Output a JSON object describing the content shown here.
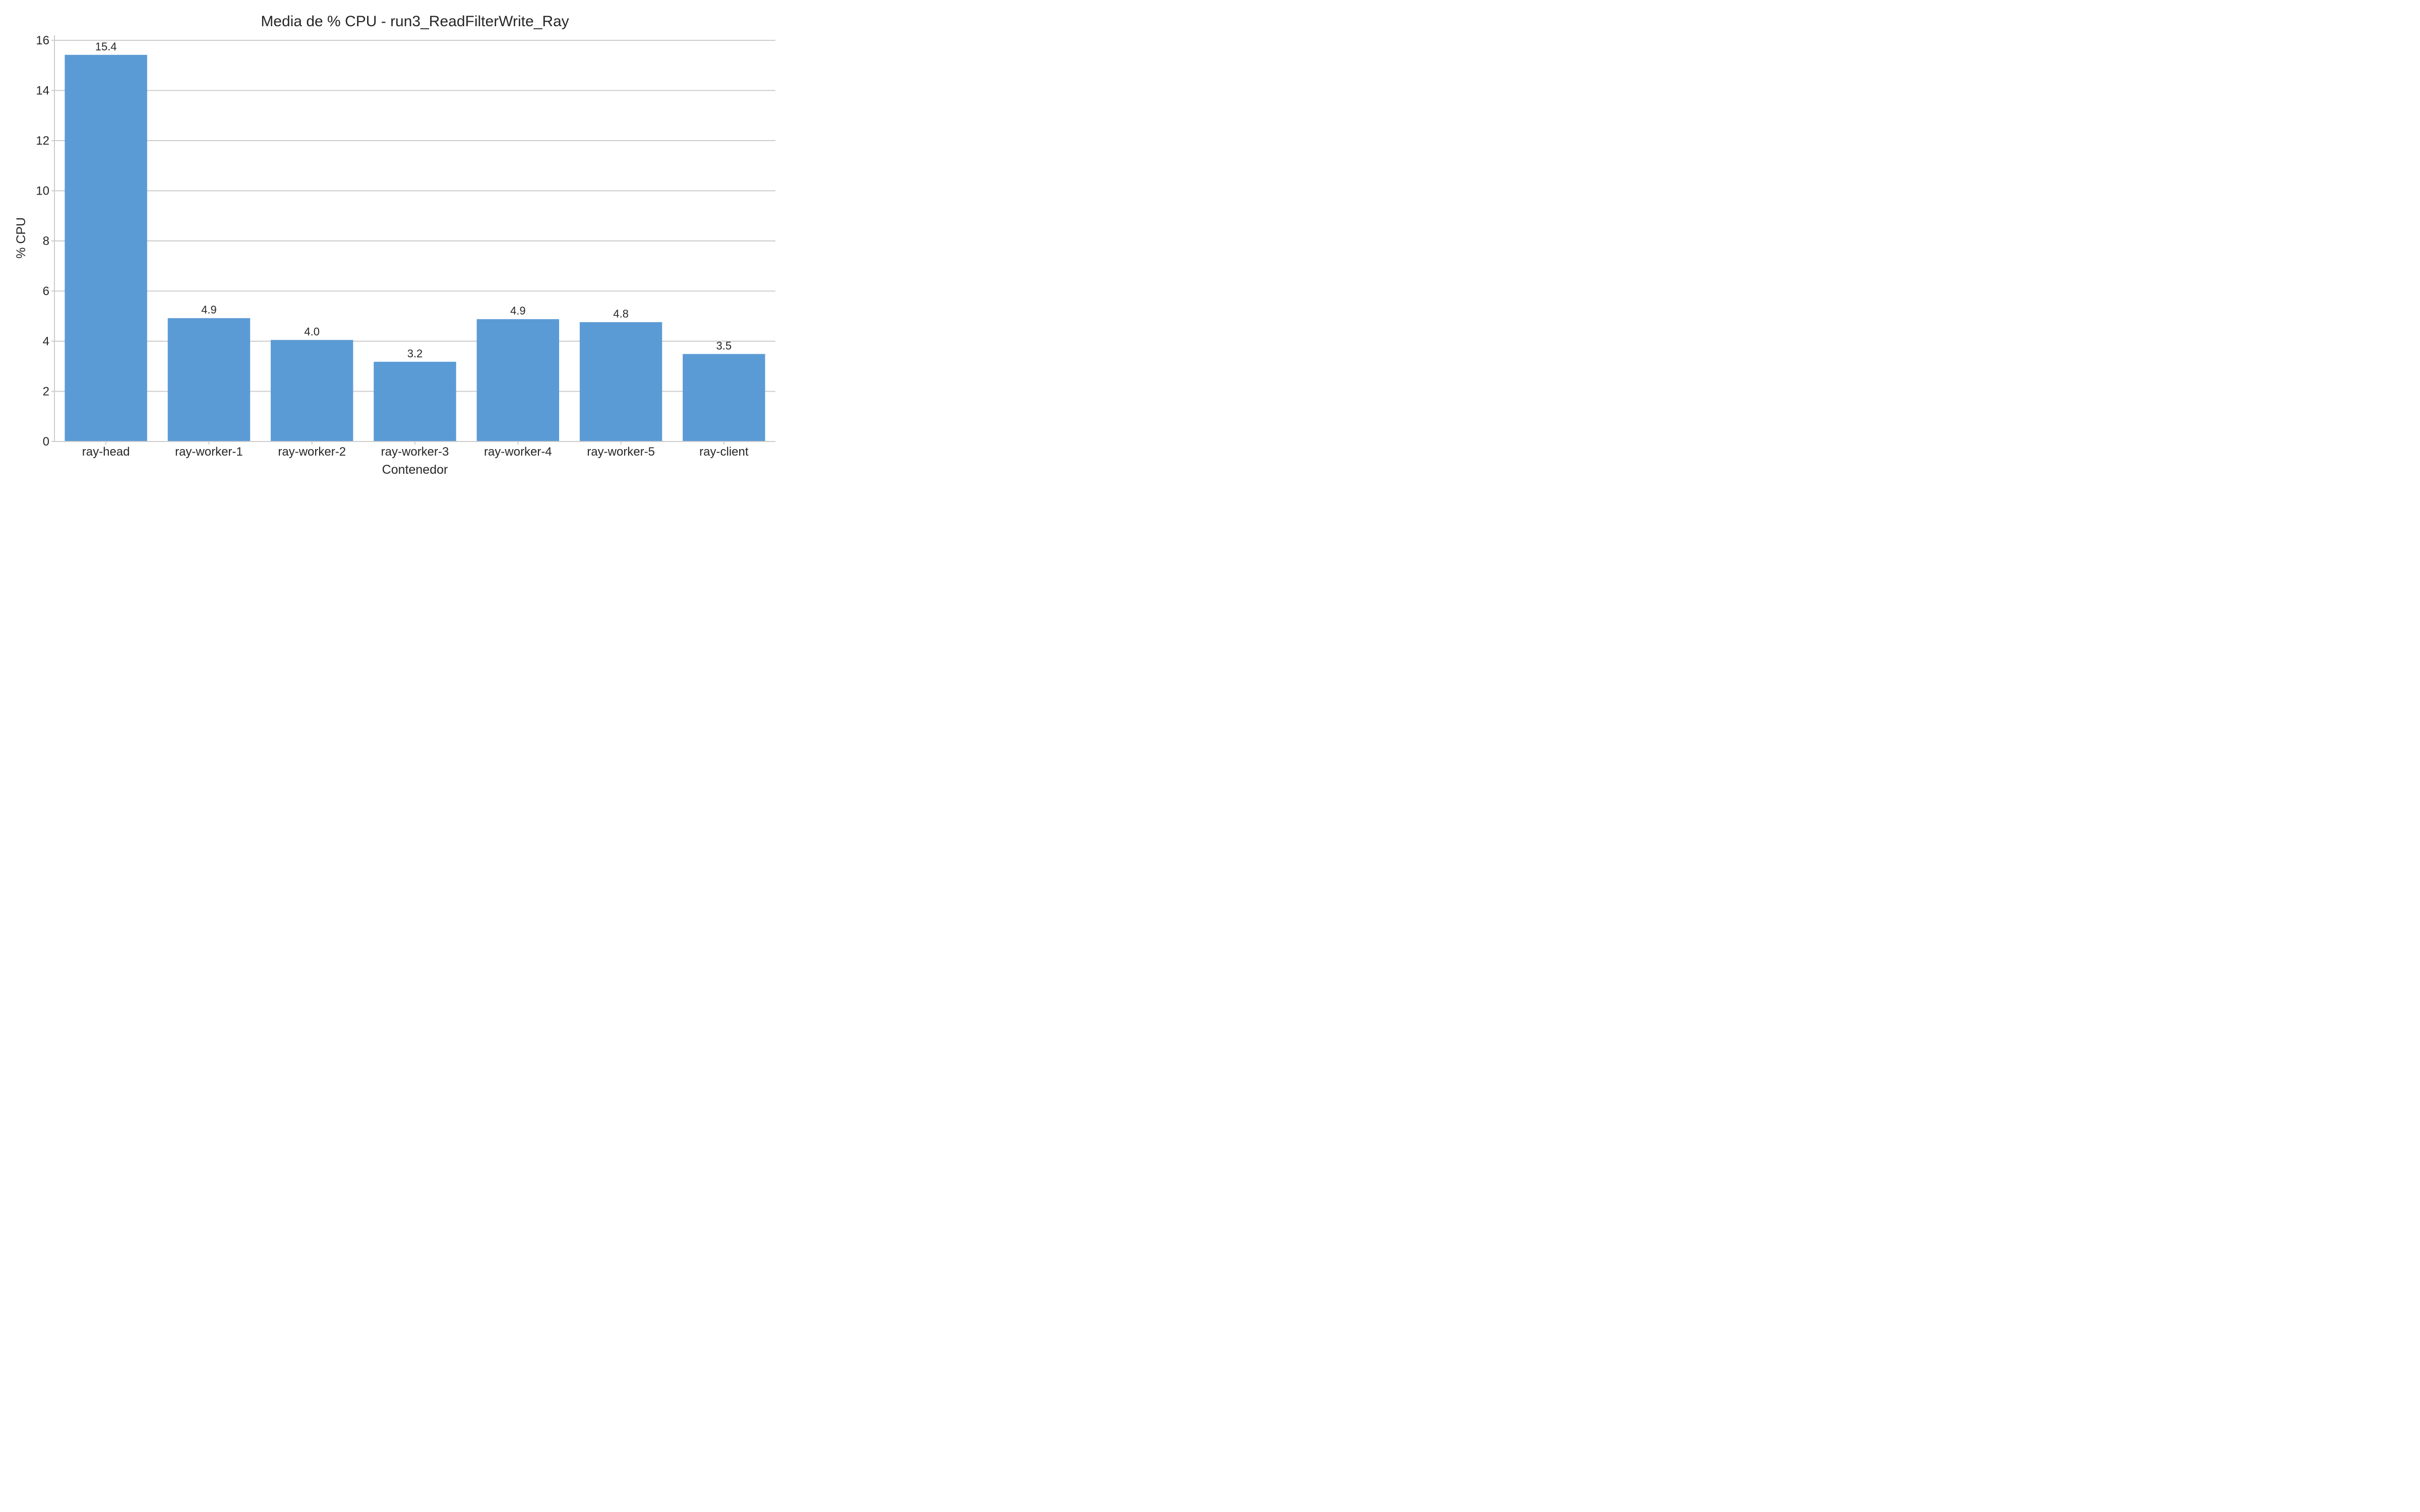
{
  "chart_data": {
    "type": "bar",
    "title": "Media de % CPU - run3_ReadFilterWrite_Ray",
    "xlabel": "Contenedor",
    "ylabel": "% CPU",
    "categories": [
      "ray-head",
      "ray-worker-1",
      "ray-worker-2",
      "ray-worker-3",
      "ray-worker-4",
      "ray-worker-5",
      "ray-client"
    ],
    "values": [
      15.42,
      4.92,
      4.05,
      3.18,
      4.88,
      4.76,
      3.49
    ],
    "value_labels": [
      "15.4",
      "4.9",
      "4.0",
      "3.2",
      "4.9",
      "4.8",
      "3.5"
    ],
    "ylim": [
      0,
      16.2
    ],
    "yticks": [
      0,
      2,
      4,
      6,
      8,
      10,
      12,
      14,
      16
    ],
    "grid": true,
    "grid_axis": "y",
    "legend": "none",
    "bar_color": "#5b9bd5"
  }
}
